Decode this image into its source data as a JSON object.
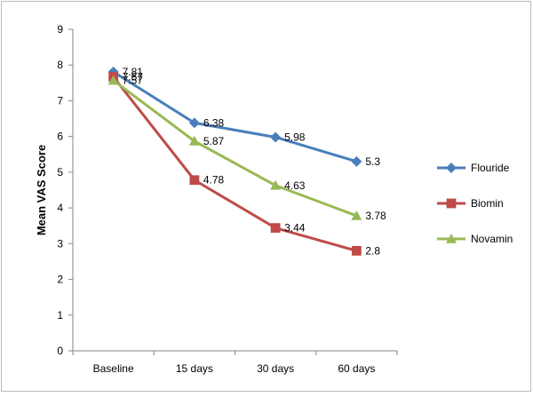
{
  "chart_data": {
    "type": "line",
    "title": "",
    "xlabel": "",
    "ylabel": "Mean VAS Score",
    "categories": [
      "Baseline",
      "15 days",
      "30 days",
      "60 days"
    ],
    "ylim": [
      0,
      9
    ],
    "yticks": [
      "0",
      "1",
      "2",
      "3",
      "4",
      "5",
      "6",
      "7",
      "8",
      "9"
    ],
    "grid": false,
    "legend_position": "right",
    "series": [
      {
        "name": "Flouride",
        "color": "#4a7ebb",
        "marker": "diamond",
        "values": [
          7.81,
          6.38,
          5.98,
          5.3
        ],
        "labels": [
          "7.81",
          "6.38",
          "5.98",
          "5.3"
        ]
      },
      {
        "name": "Biomin",
        "color": "#be4b48",
        "marker": "square",
        "values": [
          7.67,
          4.78,
          3.44,
          2.8
        ],
        "labels": [
          "7.67",
          "4.78",
          "3.44",
          "2.8"
        ]
      },
      {
        "name": "Novamin",
        "color": "#98b954",
        "marker": "triangle",
        "values": [
          7.57,
          5.87,
          4.63,
          3.78
        ],
        "labels": [
          "7.57",
          "5.87",
          "4.63",
          "3.78"
        ]
      }
    ]
  }
}
